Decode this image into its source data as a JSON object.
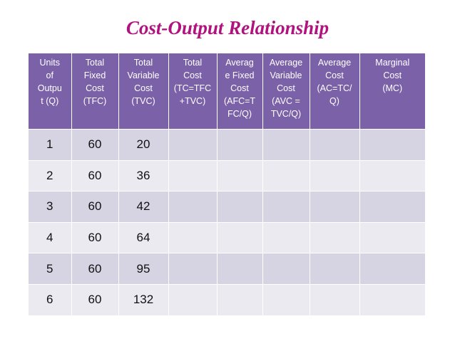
{
  "title": "Cost-Output Relationship",
  "table": {
    "headers": [
      "Units\nof\nOutpu\nt (Q)",
      "Total\nFixed\nCost\n(TFC)",
      "Total\nVariable\nCost\n(TVC)",
      "Total\nCost\n(TC=TFC\n+TVC)",
      "Averag\ne Fixed\nCost\n(AFC=T\nFC/Q)",
      "Average\nVariable\nCost\n(AVC =\nTVC/Q)",
      "Average\nCost\n(AC=TC/\nQ)",
      "Marginal\nCost\n(MC)"
    ],
    "rows": [
      [
        "1",
        "60",
        "20",
        "",
        "",
        "",
        "",
        ""
      ],
      [
        "2",
        "60",
        "36",
        "",
        "",
        "",
        "",
        ""
      ],
      [
        "3",
        "60",
        "42",
        "",
        "",
        "",
        "",
        ""
      ],
      [
        "4",
        "60",
        "64",
        "",
        "",
        "",
        "",
        ""
      ],
      [
        "5",
        "60",
        "95",
        "",
        "",
        "",
        "",
        ""
      ],
      [
        "6",
        "60",
        "132",
        "",
        "",
        "",
        "",
        ""
      ]
    ]
  },
  "colors": {
    "title": "#b0127e",
    "header_bg": "#7b61a8",
    "row_dark": "#d6d3e3",
    "row_light": "#eceaf1"
  }
}
